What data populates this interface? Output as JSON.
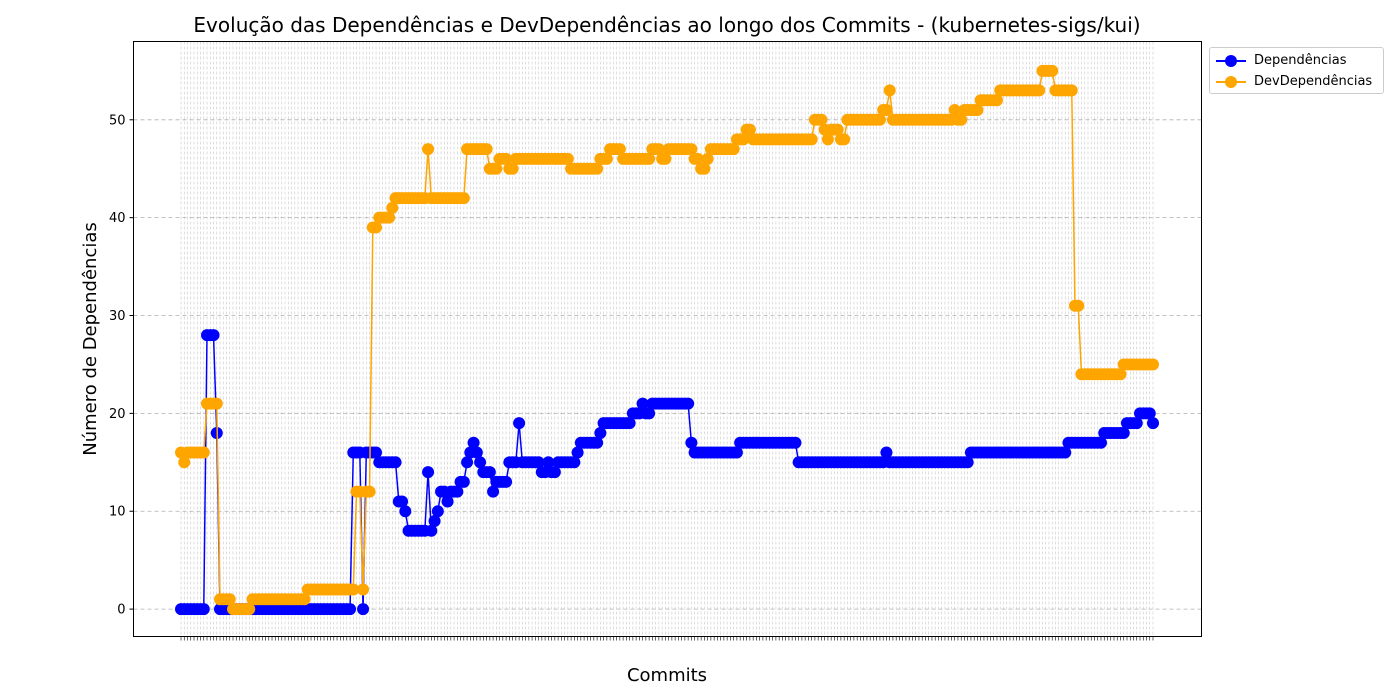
{
  "chart_data": {
    "type": "line",
    "title": "Evolução das Dependências e DevDependências ao longo dos Commits - (kubernetes-sigs/kui)",
    "xlabel": "Commits",
    "ylabel": "Número de Dependências",
    "ylim": [
      -2.8,
      58
    ],
    "yticks": [
      0,
      10,
      20,
      30,
      40,
      50
    ],
    "grid": true,
    "legend_position": "outside top-right",
    "n_commits": 300,
    "series": [
      {
        "name": "Dependências",
        "color": "#0000ff",
        "runs": [
          [
            0,
            0
          ],
          [
            8,
            28
          ],
          [
            11,
            18
          ],
          [
            12,
            0
          ],
          [
            53,
            16
          ],
          [
            56,
            0
          ],
          [
            57,
            16
          ],
          [
            61,
            15
          ],
          [
            67,
            11
          ],
          [
            69,
            10
          ],
          [
            70,
            8
          ],
          [
            76,
            14
          ],
          [
            77,
            8
          ],
          [
            78,
            9
          ],
          [
            79,
            10
          ],
          [
            80,
            12
          ],
          [
            82,
            11
          ],
          [
            83,
            12
          ],
          [
            86,
            13
          ],
          [
            88,
            15
          ],
          [
            89,
            16
          ],
          [
            90,
            17
          ],
          [
            91,
            16
          ],
          [
            92,
            15
          ],
          [
            93,
            14
          ],
          [
            96,
            12
          ],
          [
            97,
            13
          ],
          [
            101,
            15
          ],
          [
            104,
            19
          ],
          [
            105,
            15
          ],
          [
            111,
            14
          ],
          [
            113,
            15
          ],
          [
            114,
            14
          ],
          [
            116,
            15
          ],
          [
            122,
            16
          ],
          [
            123,
            17
          ],
          [
            129,
            18
          ],
          [
            130,
            19
          ],
          [
            139,
            20
          ],
          [
            142,
            21
          ],
          [
            143,
            20
          ],
          [
            145,
            21
          ],
          [
            157,
            17
          ],
          [
            158,
            16
          ],
          [
            172,
            17
          ],
          [
            190,
            15
          ],
          [
            217,
            16
          ],
          [
            218,
            15
          ],
          [
            243,
            16
          ],
          [
            273,
            17
          ],
          [
            284,
            18
          ],
          [
            291,
            19
          ],
          [
            295,
            20
          ],
          [
            299,
            19
          ]
        ]
      },
      {
        "name": "DevDependências",
        "color": "#ffa500",
        "runs": [
          [
            0,
            16
          ],
          [
            1,
            15
          ],
          [
            2,
            16
          ],
          [
            8,
            21
          ],
          [
            12,
            1
          ],
          [
            16,
            0
          ],
          [
            22,
            1
          ],
          [
            39,
            2
          ],
          [
            54,
            12
          ],
          [
            56,
            2
          ],
          [
            57,
            12
          ],
          [
            59,
            39
          ],
          [
            61,
            40
          ],
          [
            65,
            41
          ],
          [
            66,
            42
          ],
          [
            76,
            47
          ],
          [
            77,
            42
          ],
          [
            88,
            47
          ],
          [
            95,
            45
          ],
          [
            98,
            46
          ],
          [
            101,
            45
          ],
          [
            103,
            46
          ],
          [
            120,
            45
          ],
          [
            129,
            46
          ],
          [
            132,
            47
          ],
          [
            136,
            46
          ],
          [
            145,
            47
          ],
          [
            148,
            46
          ],
          [
            150,
            47
          ],
          [
            158,
            46
          ],
          [
            160,
            45
          ],
          [
            162,
            46
          ],
          [
            163,
            47
          ],
          [
            171,
            48
          ],
          [
            174,
            49
          ],
          [
            176,
            48
          ],
          [
            195,
            50
          ],
          [
            198,
            49
          ],
          [
            199,
            48
          ],
          [
            200,
            49
          ],
          [
            203,
            48
          ],
          [
            205,
            50
          ],
          [
            216,
            51
          ],
          [
            218,
            53
          ],
          [
            219,
            50
          ],
          [
            238,
            51
          ],
          [
            239,
            50
          ],
          [
            241,
            51
          ],
          [
            246,
            52
          ],
          [
            252,
            53
          ],
          [
            265,
            55
          ],
          [
            269,
            53
          ],
          [
            275,
            31
          ],
          [
            277,
            24
          ],
          [
            290,
            25
          ]
        ]
      }
    ]
  },
  "legend": {
    "items": [
      {
        "label": "Dependências",
        "color": "#0000ff"
      },
      {
        "label": "DevDependências",
        "color": "#ffa500"
      }
    ]
  }
}
